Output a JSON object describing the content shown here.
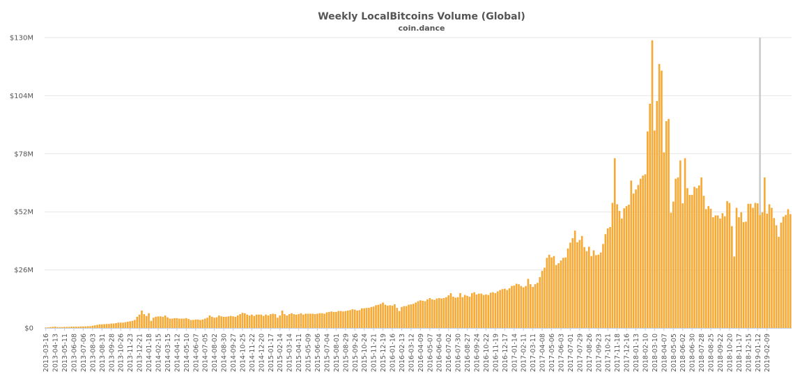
{
  "chart_data": {
    "type": "bar",
    "title": "Weekly LocalBitcoins Volume (Global)",
    "subtitle": "coin.dance",
    "xlabel": "",
    "ylabel": "",
    "ylim": [
      0,
      130
    ],
    "y_unit": "USD millions",
    "y_ticks": [
      {
        "value": 0,
        "label": "$0"
      },
      {
        "value": 26,
        "label": "$26M"
      },
      {
        "value": 52,
        "label": "$52M"
      },
      {
        "value": 78,
        "label": "$78M"
      },
      {
        "value": 104,
        "label": "$104M"
      },
      {
        "value": 130,
        "label": "$130M"
      }
    ],
    "x_start_week": "2013-03-16",
    "x_tick_labels": [
      "2013-03-16",
      "2013-04-13",
      "2013-05-11",
      "2013-06-08",
      "2013-07-06",
      "2013-08-03",
      "2013-08-31",
      "2013-09-28",
      "2013-10-26",
      "2013-11-23",
      "2013-12-21",
      "2014-01-18",
      "2014-02-15",
      "2014-03-15",
      "2014-04-12",
      "2014-05-10",
      "2014-06-07",
      "2014-07-05",
      "2014-08-02",
      "2014-08-30",
      "2014-09-27",
      "2014-10-25",
      "2014-11-22",
      "2014-12-20",
      "2015-01-17",
      "2015-02-14",
      "2015-03-14",
      "2015-04-11",
      "2015-05-09",
      "2015-06-06",
      "2015-07-04",
      "2015-08-01",
      "2015-08-29",
      "2015-09-26",
      "2015-10-24",
      "2015-11-21",
      "2015-12-19",
      "2016-01-16",
      "2016-02-13",
      "2016-03-12",
      "2016-04-09",
      "2016-05-07",
      "2016-06-04",
      "2016-07-02",
      "2016-07-30",
      "2016-08-27",
      "2016-09-24",
      "2016-10-22",
      "2016-11-19",
      "2016-12-17",
      "2017-01-14",
      "2017-02-11",
      "2017-03-11",
      "2017-04-08",
      "2017-05-06",
      "2017-06-03",
      "2017-07-01",
      "2017-07-29",
      "2017-08-26",
      "2017-09-23",
      "2017-10-21",
      "2017-11-18",
      "2017-12-16",
      "2018-01-13",
      "2018-02-10",
      "2018-03-10",
      "2018-04-07",
      "2018-05-05",
      "2018-06-02",
      "2018-06-30",
      "2018-07-28",
      "2018-08-25",
      "2018-09-22",
      "2018-10-20",
      "2018-11-17",
      "2018-12-15",
      "2019-01-12",
      "2019-02-09"
    ],
    "tick_every_n_weeks": 4,
    "bar_color": "#f7a935",
    "highlight_color": "#cccccc",
    "highlight_week": "2019-01-19",
    "series": [
      {
        "values": [
          0.2,
          0.3,
          0.4,
          0.5,
          0.6,
          0.4,
          0.4,
          0.4,
          0.5,
          0.5,
          0.5,
          0.6,
          0.6,
          0.6,
          0.6,
          0.7,
          0.7,
          0.7,
          0.8,
          0.8,
          1.0,
          1.2,
          1.4,
          1.6,
          1.6,
          1.7,
          1.8,
          1.8,
          2.0,
          2.0,
          2.2,
          2.4,
          2.4,
          2.4,
          2.6,
          2.8,
          3.0,
          3.2,
          3.6,
          5.0,
          6.0,
          7.8,
          6.2,
          5.4,
          6.6,
          3.2,
          4.6,
          5.0,
          5.2,
          5.2,
          5.0,
          5.6,
          4.8,
          4.2,
          4.2,
          4.4,
          4.4,
          4.2,
          4.2,
          4.2,
          4.4,
          4.0,
          3.6,
          3.6,
          3.8,
          3.8,
          3.6,
          3.8,
          4.2,
          4.6,
          5.6,
          5.0,
          4.6,
          4.8,
          5.6,
          5.2,
          5.0,
          5.0,
          5.2,
          5.4,
          5.2,
          5.0,
          5.6,
          6.2,
          6.8,
          6.6,
          6.0,
          5.6,
          6.0,
          5.4,
          6.0,
          6.0,
          6.0,
          5.4,
          6.0,
          5.6,
          6.2,
          6.4,
          6.2,
          4.6,
          5.6,
          7.8,
          6.2,
          5.6,
          6.2,
          6.6,
          6.2,
          6.0,
          6.2,
          6.6,
          6.0,
          6.4,
          6.4,
          6.4,
          6.4,
          6.2,
          6.4,
          6.6,
          6.6,
          6.4,
          7.0,
          7.2,
          7.4,
          7.2,
          7.2,
          7.6,
          7.6,
          7.4,
          7.6,
          7.8,
          8.0,
          8.4,
          8.2,
          7.8,
          8.0,
          8.8,
          8.8,
          9.0,
          9.0,
          9.4,
          9.6,
          10.2,
          10.4,
          10.8,
          11.4,
          10.4,
          10.0,
          10.2,
          10.0,
          10.6,
          9.0,
          7.6,
          9.4,
          9.8,
          9.8,
          10.4,
          10.6,
          10.8,
          11.4,
          12.0,
          12.4,
          12.2,
          12.0,
          12.8,
          13.4,
          12.8,
          12.6,
          13.2,
          13.4,
          13.2,
          13.4,
          13.8,
          14.6,
          15.6,
          14.0,
          13.6,
          13.8,
          15.6,
          13.8,
          14.8,
          14.4,
          14.0,
          15.6,
          16.0,
          15.0,
          15.4,
          15.4,
          14.8,
          15.0,
          14.8,
          15.8,
          16.0,
          15.6,
          16.4,
          17.0,
          17.4,
          17.6,
          17.0,
          17.8,
          18.8,
          19.0,
          19.8,
          19.6,
          18.8,
          18.2,
          18.8,
          22.0,
          19.6,
          18.4,
          19.6,
          20.2,
          22.8,
          25.6,
          27.0,
          31.4,
          32.8,
          31.6,
          32.2,
          28.2,
          29.0,
          30.2,
          31.4,
          31.6,
          35.6,
          38.2,
          40.2,
          43.6,
          38.4,
          39.4,
          41.2,
          36.2,
          34.4,
          36.4,
          32.2,
          34.8,
          32.6,
          32.8,
          33.8,
          37.6,
          42.0,
          44.6,
          45.2,
          56.0,
          76.0,
          55.4,
          52.4,
          49.0,
          53.6,
          54.6,
          55.2,
          66.0,
          60.2,
          62.0,
          64.0,
          66.8,
          68.2,
          68.8,
          88.0,
          100.4,
          128.8,
          88.4,
          101.6,
          118.2,
          115.2,
          78.6,
          92.6,
          93.6,
          51.6,
          56.6,
          66.8,
          67.4,
          75.0,
          55.8,
          76.0,
          62.6,
          59.6,
          59.6,
          63.2,
          62.6,
          63.8,
          67.4,
          59.2,
          53.2,
          54.6,
          53.4,
          49.6,
          50.4,
          50.4,
          49.0,
          51.4,
          50.0,
          56.8,
          56.0,
          45.6,
          32.0,
          53.8,
          49.6,
          51.8,
          47.4,
          47.6,
          55.6,
          55.6,
          53.8,
          56.0,
          55.8,
          50.6,
          51.8,
          67.4,
          51.2,
          55.4,
          53.8,
          49.2,
          46.0,
          40.8,
          47.2,
          49.8,
          50.6,
          53.2,
          51.0
        ]
      }
    ]
  }
}
